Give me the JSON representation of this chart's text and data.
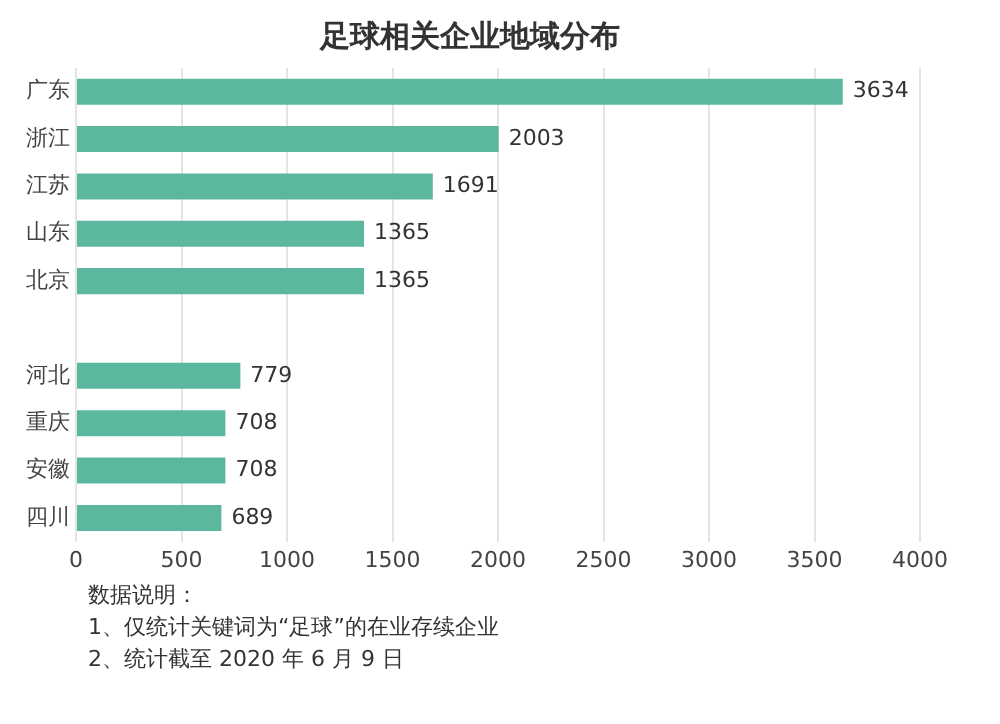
{
  "chart_data": {
    "type": "bar",
    "orientation": "horizontal",
    "title": "足球相关企业地域分布",
    "categories": [
      "广东",
      "浙江",
      "江苏",
      "山东",
      "北京",
      null,
      "河北",
      "重庆",
      "安徽",
      "四川"
    ],
    "values": [
      3634,
      2003,
      1691,
      1365,
      1365,
      null,
      779,
      708,
      708,
      689
    ],
    "color": "#5bb89f",
    "xlim": [
      0,
      4000
    ],
    "xticks": [
      0,
      500,
      1000,
      1500,
      2000,
      2500,
      3000,
      3500,
      4000
    ],
    "grid": "x",
    "data_labels": true,
    "annotations": [
      "数据说明：",
      "1、仅统计关键词为“足球”的在业存续企业",
      "2、统计截至 2020 年 6 月 9 日"
    ]
  }
}
